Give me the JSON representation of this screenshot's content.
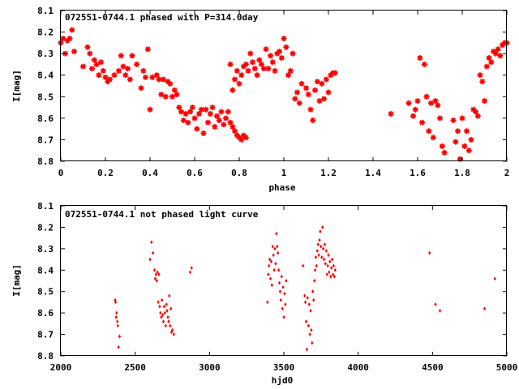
{
  "chart_data": [
    {
      "type": "scatter",
      "title": "072551-0744.1 phased with P=314.0day",
      "xlabel": "phase",
      "ylabel": "I[mag]",
      "xlim": [
        0,
        2
      ],
      "ylim": [
        8.1,
        8.8
      ],
      "y_inverted": true,
      "x_ticks": [
        "0",
        "0.2",
        "0.4",
        "0.6",
        "0.8",
        "1",
        "1.2",
        "1.4",
        "1.6",
        "1.8",
        "2"
      ],
      "y_ticks": [
        "8.1",
        "8.2",
        "8.3",
        "8.4",
        "8.5",
        "8.6",
        "8.7",
        "8.8"
      ],
      "marker": "star",
      "color": "#ff0000",
      "grid": false,
      "legend": "none",
      "points": [
        [
          0.0,
          8.25
        ],
        [
          0.01,
          8.23
        ],
        [
          0.02,
          8.3
        ],
        [
          0.03,
          8.24
        ],
        [
          0.04,
          8.23
        ],
        [
          0.05,
          8.19
        ],
        [
          0.06,
          8.29
        ],
        [
          0.1,
          8.36
        ],
        [
          0.12,
          8.27
        ],
        [
          0.13,
          8.3
        ],
        [
          0.14,
          8.37
        ],
        [
          0.15,
          8.33
        ],
        [
          0.16,
          8.35
        ],
        [
          0.17,
          8.4
        ],
        [
          0.18,
          8.34
        ],
        [
          0.19,
          8.38
        ],
        [
          0.2,
          8.41
        ],
        [
          0.21,
          8.43
        ],
        [
          0.22,
          8.42
        ],
        [
          0.24,
          8.4
        ],
        [
          0.26,
          8.38
        ],
        [
          0.27,
          8.31
        ],
        [
          0.28,
          8.36
        ],
        [
          0.29,
          8.4
        ],
        [
          0.3,
          8.37
        ],
        [
          0.31,
          8.42
        ],
        [
          0.32,
          8.31
        ],
        [
          0.34,
          8.35
        ],
        [
          0.36,
          8.46
        ],
        [
          0.37,
          8.38
        ],
        [
          0.38,
          8.41
        ],
        [
          0.39,
          8.28
        ],
        [
          0.4,
          8.56
        ],
        [
          0.41,
          8.41
        ],
        [
          0.43,
          8.4
        ],
        [
          0.44,
          8.42
        ],
        [
          0.45,
          8.49
        ],
        [
          0.46,
          8.42
        ],
        [
          0.47,
          8.5
        ],
        [
          0.48,
          8.43
        ],
        [
          0.49,
          8.44
        ],
        [
          0.5,
          8.5
        ],
        [
          0.51,
          8.47
        ],
        [
          0.52,
          8.49
        ],
        [
          0.53,
          8.55
        ],
        [
          0.54,
          8.57
        ],
        [
          0.55,
          8.61
        ],
        [
          0.56,
          8.58
        ],
        [
          0.57,
          8.62
        ],
        [
          0.58,
          8.57
        ],
        [
          0.59,
          8.55
        ],
        [
          0.6,
          8.6
        ],
        [
          0.61,
          8.65
        ],
        [
          0.62,
          8.58
        ],
        [
          0.63,
          8.56
        ],
        [
          0.64,
          8.67
        ],
        [
          0.65,
          8.56
        ],
        [
          0.66,
          8.62
        ],
        [
          0.67,
          8.58
        ],
        [
          0.68,
          8.55
        ],
        [
          0.69,
          8.64
        ],
        [
          0.7,
          8.59
        ],
        [
          0.71,
          8.61
        ],
        [
          0.72,
          8.57
        ],
        [
          0.73,
          8.63
        ],
        [
          0.74,
          8.6
        ],
        [
          0.75,
          8.57
        ],
        [
          0.76,
          8.62
        ],
        [
          0.77,
          8.64
        ],
        [
          0.78,
          8.66
        ],
        [
          0.79,
          8.68
        ],
        [
          0.8,
          8.69
        ],
        [
          0.81,
          8.7
        ],
        [
          0.82,
          8.68
        ],
        [
          0.83,
          8.69
        ],
        [
          0.76,
          8.35
        ],
        [
          0.77,
          8.47
        ],
        [
          0.78,
          8.42
        ],
        [
          0.79,
          8.38
        ],
        [
          0.8,
          8.44
        ],
        [
          0.81,
          8.4
        ],
        [
          0.82,
          8.36
        ],
        [
          0.83,
          8.35
        ],
        [
          0.84,
          8.38
        ],
        [
          0.85,
          8.3
        ],
        [
          0.86,
          8.34
        ],
        [
          0.87,
          8.37
        ],
        [
          0.88,
          8.4
        ],
        [
          0.89,
          8.33
        ],
        [
          0.9,
          8.35
        ],
        [
          0.91,
          8.37
        ],
        [
          0.92,
          8.28
        ],
        [
          0.93,
          8.37
        ],
        [
          0.94,
          8.31
        ],
        [
          0.95,
          8.34
        ],
        [
          0.96,
          8.38
        ],
        [
          0.97,
          8.3
        ],
        [
          0.98,
          8.29
        ],
        [
          0.99,
          8.32
        ],
        [
          1.0,
          8.23
        ],
        [
          1.01,
          8.27
        ],
        [
          1.02,
          8.4
        ],
        [
          1.03,
          8.38
        ],
        [
          1.04,
          8.3
        ],
        [
          1.05,
          8.51
        ],
        [
          1.06,
          8.48
        ],
        [
          1.07,
          8.53
        ],
        [
          1.08,
          8.44
        ],
        [
          1.1,
          8.46
        ],
        [
          1.11,
          8.49
        ],
        [
          1.12,
          8.56
        ],
        [
          1.13,
          8.61
        ],
        [
          1.14,
          8.47
        ],
        [
          1.15,
          8.43
        ],
        [
          1.16,
          8.52
        ],
        [
          1.17,
          8.44
        ],
        [
          1.18,
          8.51
        ],
        [
          1.19,
          8.42
        ],
        [
          1.2,
          8.48
        ],
        [
          1.21,
          8.4
        ],
        [
          1.22,
          8.39
        ],
        [
          1.23,
          8.39
        ],
        [
          1.48,
          8.58
        ],
        [
          1.56,
          8.53
        ],
        [
          1.58,
          8.59
        ],
        [
          1.59,
          8.56
        ],
        [
          1.6,
          8.52
        ],
        [
          1.61,
          8.32
        ],
        [
          1.62,
          8.62
        ],
        [
          1.63,
          8.35
        ],
        [
          1.64,
          8.5
        ],
        [
          1.65,
          8.66
        ],
        [
          1.66,
          8.53
        ],
        [
          1.67,
          8.69
        ],
        [
          1.68,
          8.52
        ],
        [
          1.69,
          8.54
        ],
        [
          1.7,
          8.6
        ],
        [
          1.71,
          8.73
        ],
        [
          1.72,
          8.76
        ],
        [
          1.76,
          8.61
        ],
        [
          1.77,
          8.71
        ],
        [
          1.78,
          8.66
        ],
        [
          1.79,
          8.79
        ],
        [
          1.8,
          8.6
        ],
        [
          1.81,
          8.73
        ],
        [
          1.82,
          8.66
        ],
        [
          1.83,
          8.75
        ],
        [
          1.84,
          8.7
        ],
        [
          1.85,
          8.56
        ],
        [
          1.86,
          8.57
        ],
        [
          1.87,
          8.59
        ],
        [
          1.88,
          8.4
        ],
        [
          1.89,
          8.43
        ],
        [
          1.9,
          8.52
        ],
        [
          1.91,
          8.36
        ],
        [
          1.92,
          8.32
        ],
        [
          1.93,
          8.34
        ],
        [
          1.94,
          8.29
        ],
        [
          1.95,
          8.3
        ],
        [
          1.96,
          8.28
        ],
        [
          1.97,
          8.31
        ],
        [
          1.98,
          8.26
        ],
        [
          1.99,
          8.25
        ],
        [
          2.0,
          8.25
        ]
      ]
    },
    {
      "type": "scatter",
      "title": "072551-0744.1 not phased light curve",
      "xlabel": "hjd0",
      "ylabel": "I[mag]",
      "xlim": [
        2000,
        5000
      ],
      "ylim": [
        8.1,
        8.8
      ],
      "y_inverted": true,
      "x_ticks": [
        "2000",
        "2500",
        "3000",
        "3500",
        "4000",
        "4500",
        "5000"
      ],
      "y_ticks": [
        "8.1",
        "8.2",
        "8.3",
        "8.4",
        "8.5",
        "8.6",
        "8.7",
        "8.8"
      ],
      "marker": "diamond",
      "color": "#ff0000",
      "grid": false,
      "legend": "none",
      "points": [
        [
          2365,
          8.54
        ],
        [
          2368,
          8.55
        ],
        [
          2372,
          8.62
        ],
        [
          2375,
          8.6
        ],
        [
          2380,
          8.64
        ],
        [
          2383,
          8.66
        ],
        [
          2388,
          8.76
        ],
        [
          2395,
          8.71
        ],
        [
          2600,
          8.35
        ],
        [
          2610,
          8.27
        ],
        [
          2620,
          8.32
        ],
        [
          2630,
          8.4
        ],
        [
          2635,
          8.44
        ],
        [
          2640,
          8.42
        ],
        [
          2645,
          8.45
        ],
        [
          2650,
          8.41
        ],
        [
          2655,
          8.55
        ],
        [
          2660,
          8.42
        ],
        [
          2665,
          8.57
        ],
        [
          2670,
          8.6
        ],
        [
          2675,
          8.62
        ],
        [
          2680,
          8.54
        ],
        [
          2685,
          8.61
        ],
        [
          2690,
          8.64
        ],
        [
          2695,
          8.57
        ],
        [
          2700,
          8.6
        ],
        [
          2705,
          8.66
        ],
        [
          2710,
          8.56
        ],
        [
          2715,
          8.59
        ],
        [
          2720,
          8.62
        ],
        [
          2725,
          8.64
        ],
        [
          2730,
          8.52
        ],
        [
          2735,
          8.66
        ],
        [
          2740,
          8.58
        ],
        [
          2745,
          8.69
        ],
        [
          2750,
          8.68
        ],
        [
          2760,
          8.7
        ],
        [
          2870,
          8.41
        ],
        [
          2880,
          8.39
        ],
        [
          3390,
          8.55
        ],
        [
          3395,
          8.42
        ],
        [
          3400,
          8.38
        ],
        [
          3405,
          8.35
        ],
        [
          3410,
          8.44
        ],
        [
          3415,
          8.36
        ],
        [
          3420,
          8.47
        ],
        [
          3425,
          8.29
        ],
        [
          3430,
          8.33
        ],
        [
          3435,
          8.4
        ],
        [
          3440,
          8.3
        ],
        [
          3445,
          8.37
        ],
        [
          3450,
          8.23
        ],
        [
          3455,
          8.29
        ],
        [
          3460,
          8.32
        ],
        [
          3465,
          8.4
        ],
        [
          3470,
          8.46
        ],
        [
          3475,
          8.5
        ],
        [
          3480,
          8.54
        ],
        [
          3485,
          8.43
        ],
        [
          3490,
          8.58
        ],
        [
          3495,
          8.48
        ],
        [
          3500,
          8.62
        ],
        [
          3505,
          8.51
        ],
        [
          3510,
          8.56
        ],
        [
          3515,
          8.45
        ],
        [
          3630,
          8.38
        ],
        [
          3640,
          8.52
        ],
        [
          3645,
          8.55
        ],
        [
          3650,
          8.64
        ],
        [
          3655,
          8.77
        ],
        [
          3660,
          8.53
        ],
        [
          3665,
          8.66
        ],
        [
          3670,
          8.56
        ],
        [
          3675,
          8.7
        ],
        [
          3680,
          8.59
        ],
        [
          3685,
          8.68
        ],
        [
          3690,
          8.74
        ],
        [
          3695,
          8.5
        ],
        [
          3700,
          8.54
        ],
        [
          3705,
          8.45
        ],
        [
          3710,
          8.4
        ],
        [
          3715,
          8.34
        ],
        [
          3720,
          8.38
        ],
        [
          3725,
          8.31
        ],
        [
          3730,
          8.28
        ],
        [
          3735,
          8.33
        ],
        [
          3740,
          8.26
        ],
        [
          3745,
          8.22
        ],
        [
          3750,
          8.29
        ],
        [
          3755,
          8.34
        ],
        [
          3760,
          8.2
        ],
        [
          3765,
          8.3
        ],
        [
          3770,
          8.35
        ],
        [
          3775,
          8.28
        ],
        [
          3780,
          8.37
        ],
        [
          3785,
          8.31
        ],
        [
          3790,
          8.42
        ],
        [
          3795,
          8.38
        ],
        [
          3800,
          8.33
        ],
        [
          3805,
          8.41
        ],
        [
          3810,
          8.36
        ],
        [
          3815,
          8.43
        ],
        [
          3820,
          8.39
        ],
        [
          3825,
          8.35
        ],
        [
          3830,
          8.42
        ],
        [
          3835,
          8.38
        ],
        [
          3840,
          8.43
        ],
        [
          3845,
          8.4
        ],
        [
          4480,
          8.32
        ],
        [
          4520,
          8.56
        ],
        [
          4550,
          8.59
        ],
        [
          4850,
          8.58
        ],
        [
          4920,
          8.44
        ]
      ]
    }
  ]
}
